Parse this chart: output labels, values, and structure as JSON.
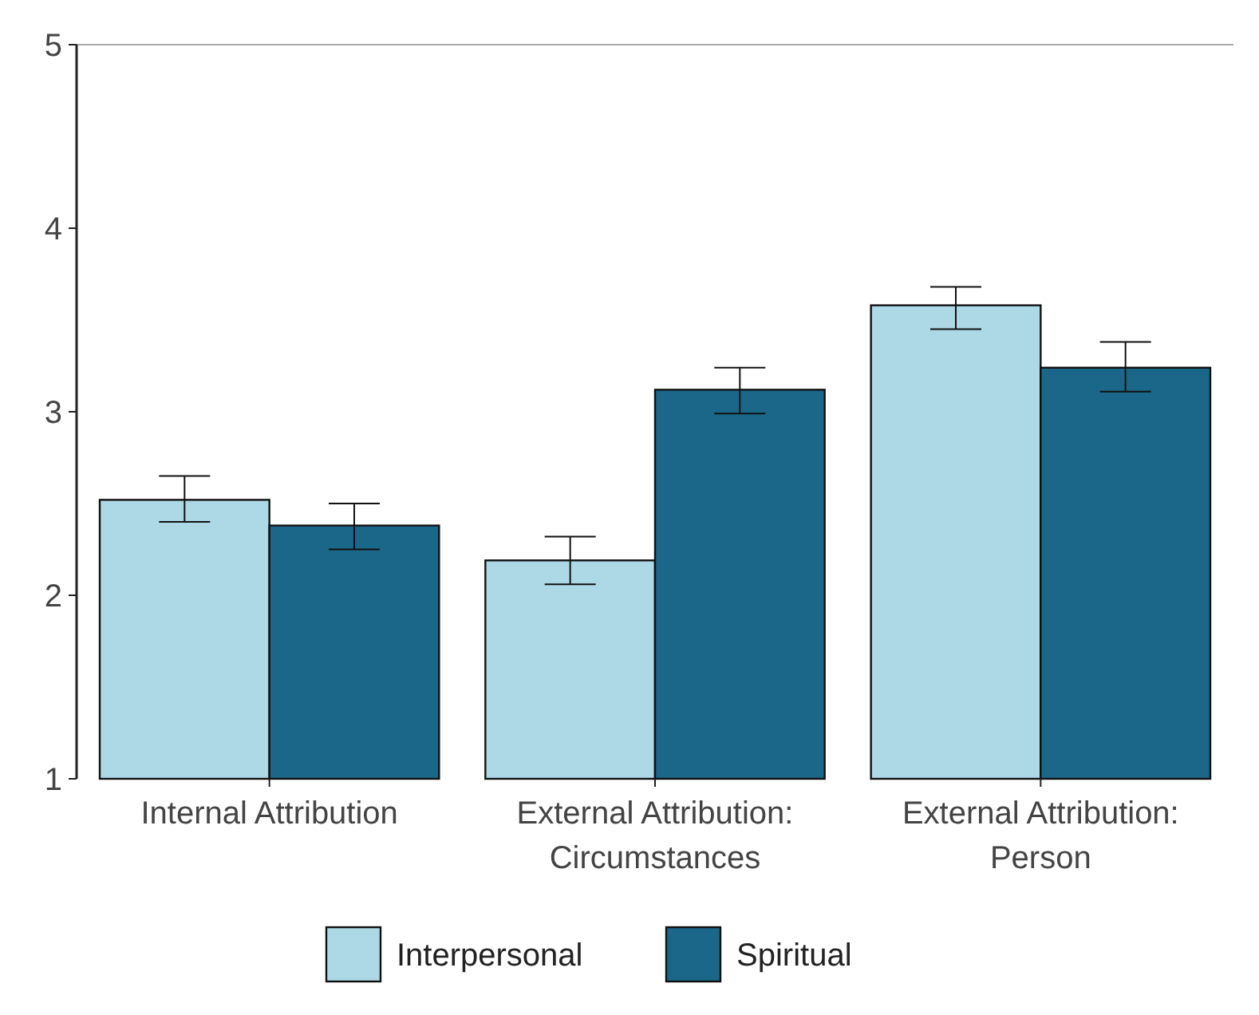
{
  "chart_data": {
    "type": "bar",
    "categories": [
      "Internal Attribution",
      "External Attribution:\nCircumstances",
      "External Attribution:\nPerson"
    ],
    "series": [
      {
        "name": "Interpersonal",
        "color": "#add8e6",
        "values": [
          2.52,
          2.19,
          3.58
        ],
        "errors": [
          [
            2.4,
            2.65
          ],
          [
            2.06,
            2.32
          ],
          [
            3.45,
            3.68
          ]
        ]
      },
      {
        "name": "Spiritual",
        "color": "#1a6789",
        "values": [
          2.38,
          3.12,
          3.24
        ],
        "errors": [
          [
            2.25,
            2.5
          ],
          [
            2.99,
            3.24
          ],
          [
            3.11,
            3.38
          ]
        ]
      }
    ],
    "ylim": [
      1,
      5
    ],
    "yticks": [
      1,
      2,
      3,
      4,
      5
    ],
    "grid": false,
    "legend": "bottom",
    "ref_lines": [
      {
        "axis": "y",
        "value": 5,
        "label": null,
        "color": "#aaaaaa"
      }
    ]
  }
}
